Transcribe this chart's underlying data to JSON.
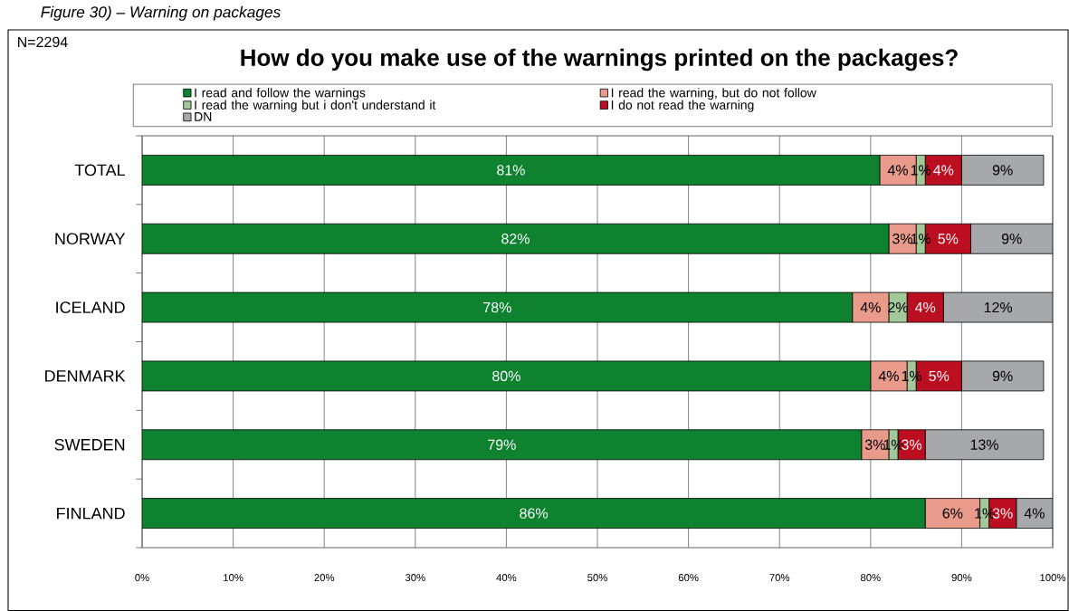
{
  "chart_data": {
    "type": "bar",
    "orientation": "horizontal",
    "stacked": true,
    "title": "How do you make use of the warnings printed on the packages?",
    "annotations": [
      "Figure 30) – Warning on packages",
      "N=2294"
    ],
    "categories": [
      "TOTAL",
      "NORWAY",
      "ICELAND",
      "DENMARK",
      "SWEDEN",
      "FINLAND"
    ],
    "series": [
      {
        "name": "I read and follow the warnings",
        "color": "#0f8230",
        "values": [
          81,
          82,
          78,
          80,
          79,
          86
        ],
        "value_labels": [
          "81%",
          "82%",
          "78%",
          "80%",
          "79%",
          "86%"
        ]
      },
      {
        "name": "I read the warning, but do not follow",
        "color": "#ea9a8a",
        "values": [
          4,
          3,
          4,
          4,
          3,
          6
        ],
        "value_labels": [
          "4%",
          "3%",
          "4%",
          "4%",
          "3%",
          "6%"
        ]
      },
      {
        "name": "I read the warning but i don't understand it",
        "color": "#a3c99b",
        "values": [
          1,
          1,
          2,
          1,
          1,
          1
        ],
        "value_labels": [
          "1%",
          "1%",
          "2%",
          "1%",
          "1%",
          "1%"
        ]
      },
      {
        "name": "I do not read the warning",
        "color": "#bb0e20",
        "values": [
          4,
          5,
          4,
          5,
          3,
          3
        ],
        "value_labels": [
          "4%",
          "5%",
          "4%",
          "5%",
          "3%",
          "3%"
        ]
      },
      {
        "name": "DN",
        "color": "#a7a8ac",
        "values": [
          9,
          9,
          12,
          9,
          13,
          4
        ],
        "value_labels": [
          "9%",
          "9%",
          "12%",
          "9%",
          "13%",
          "4%"
        ]
      }
    ],
    "xlim": [
      0,
      100
    ],
    "xticks": [
      {
        "value": 0,
        "label": "0%"
      },
      {
        "value": 10,
        "label": "10%"
      },
      {
        "value": 20,
        "label": "20%"
      },
      {
        "value": 30,
        "label": "30%"
      },
      {
        "value": 40,
        "label": "40%"
      },
      {
        "value": 50,
        "label": "50%"
      },
      {
        "value": 60,
        "label": "60%"
      },
      {
        "value": 70,
        "label": "70%"
      },
      {
        "value": 80,
        "label": "80%"
      },
      {
        "value": 90,
        "label": "90%"
      },
      {
        "value": 100,
        "label": "100%"
      }
    ],
    "grid": "x",
    "legend": "top"
  }
}
